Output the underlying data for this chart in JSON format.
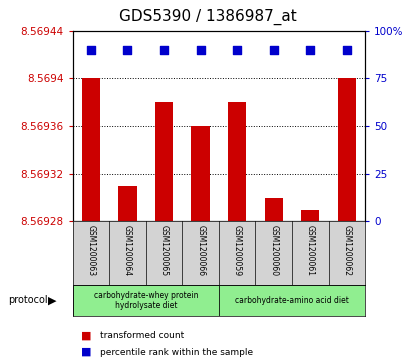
{
  "title": "GDS5390 / 1386987_at",
  "samples": [
    "GSM1200063",
    "GSM1200064",
    "GSM1200065",
    "GSM1200066",
    "GSM1200059",
    "GSM1200060",
    "GSM1200061",
    "GSM1200062"
  ],
  "transformed_count": [
    8.5694,
    8.56931,
    8.56938,
    8.56936,
    8.56938,
    8.5693,
    8.56929,
    8.5694
  ],
  "percentile_rank": [
    90,
    90,
    90,
    90,
    90,
    90,
    90,
    90
  ],
  "ylim_left": [
    8.56928,
    8.56944
  ],
  "ylim_right": [
    0,
    100
  ],
  "yticks_left": [
    8.56928,
    8.56932,
    8.56936,
    8.5694,
    8.56944
  ],
  "yticks_left_labels": [
    "8.56928",
    "8.56932",
    "8.56936",
    "8.5694",
    "8.56944"
  ],
  "yticks_right": [
    0,
    25,
    50,
    75,
    100
  ],
  "yticks_right_labels": [
    "0",
    "25",
    "50",
    "75",
    "100%"
  ],
  "bar_color": "#cc0000",
  "dot_color": "#0000cc",
  "bg_plot": "#ffffff",
  "bg_sample_row": "#d3d3d3",
  "protocol_groups": [
    {
      "label": "carbohydrate-whey protein\nhydrolysate diet",
      "start": 0,
      "end": 3,
      "color": "#90ee90"
    },
    {
      "label": "carbohydrate-amino acid diet",
      "start": 4,
      "end": 7,
      "color": "#90ee90"
    }
  ],
  "protocol_label": "protocol",
  "legend_items": [
    {
      "color": "#cc0000",
      "label": "transformed count"
    },
    {
      "color": "#0000cc",
      "label": "percentile rank within the sample"
    }
  ],
  "title_fontsize": 11,
  "tick_fontsize": 7.5,
  "bar_width": 0.5,
  "dot_size": 28
}
